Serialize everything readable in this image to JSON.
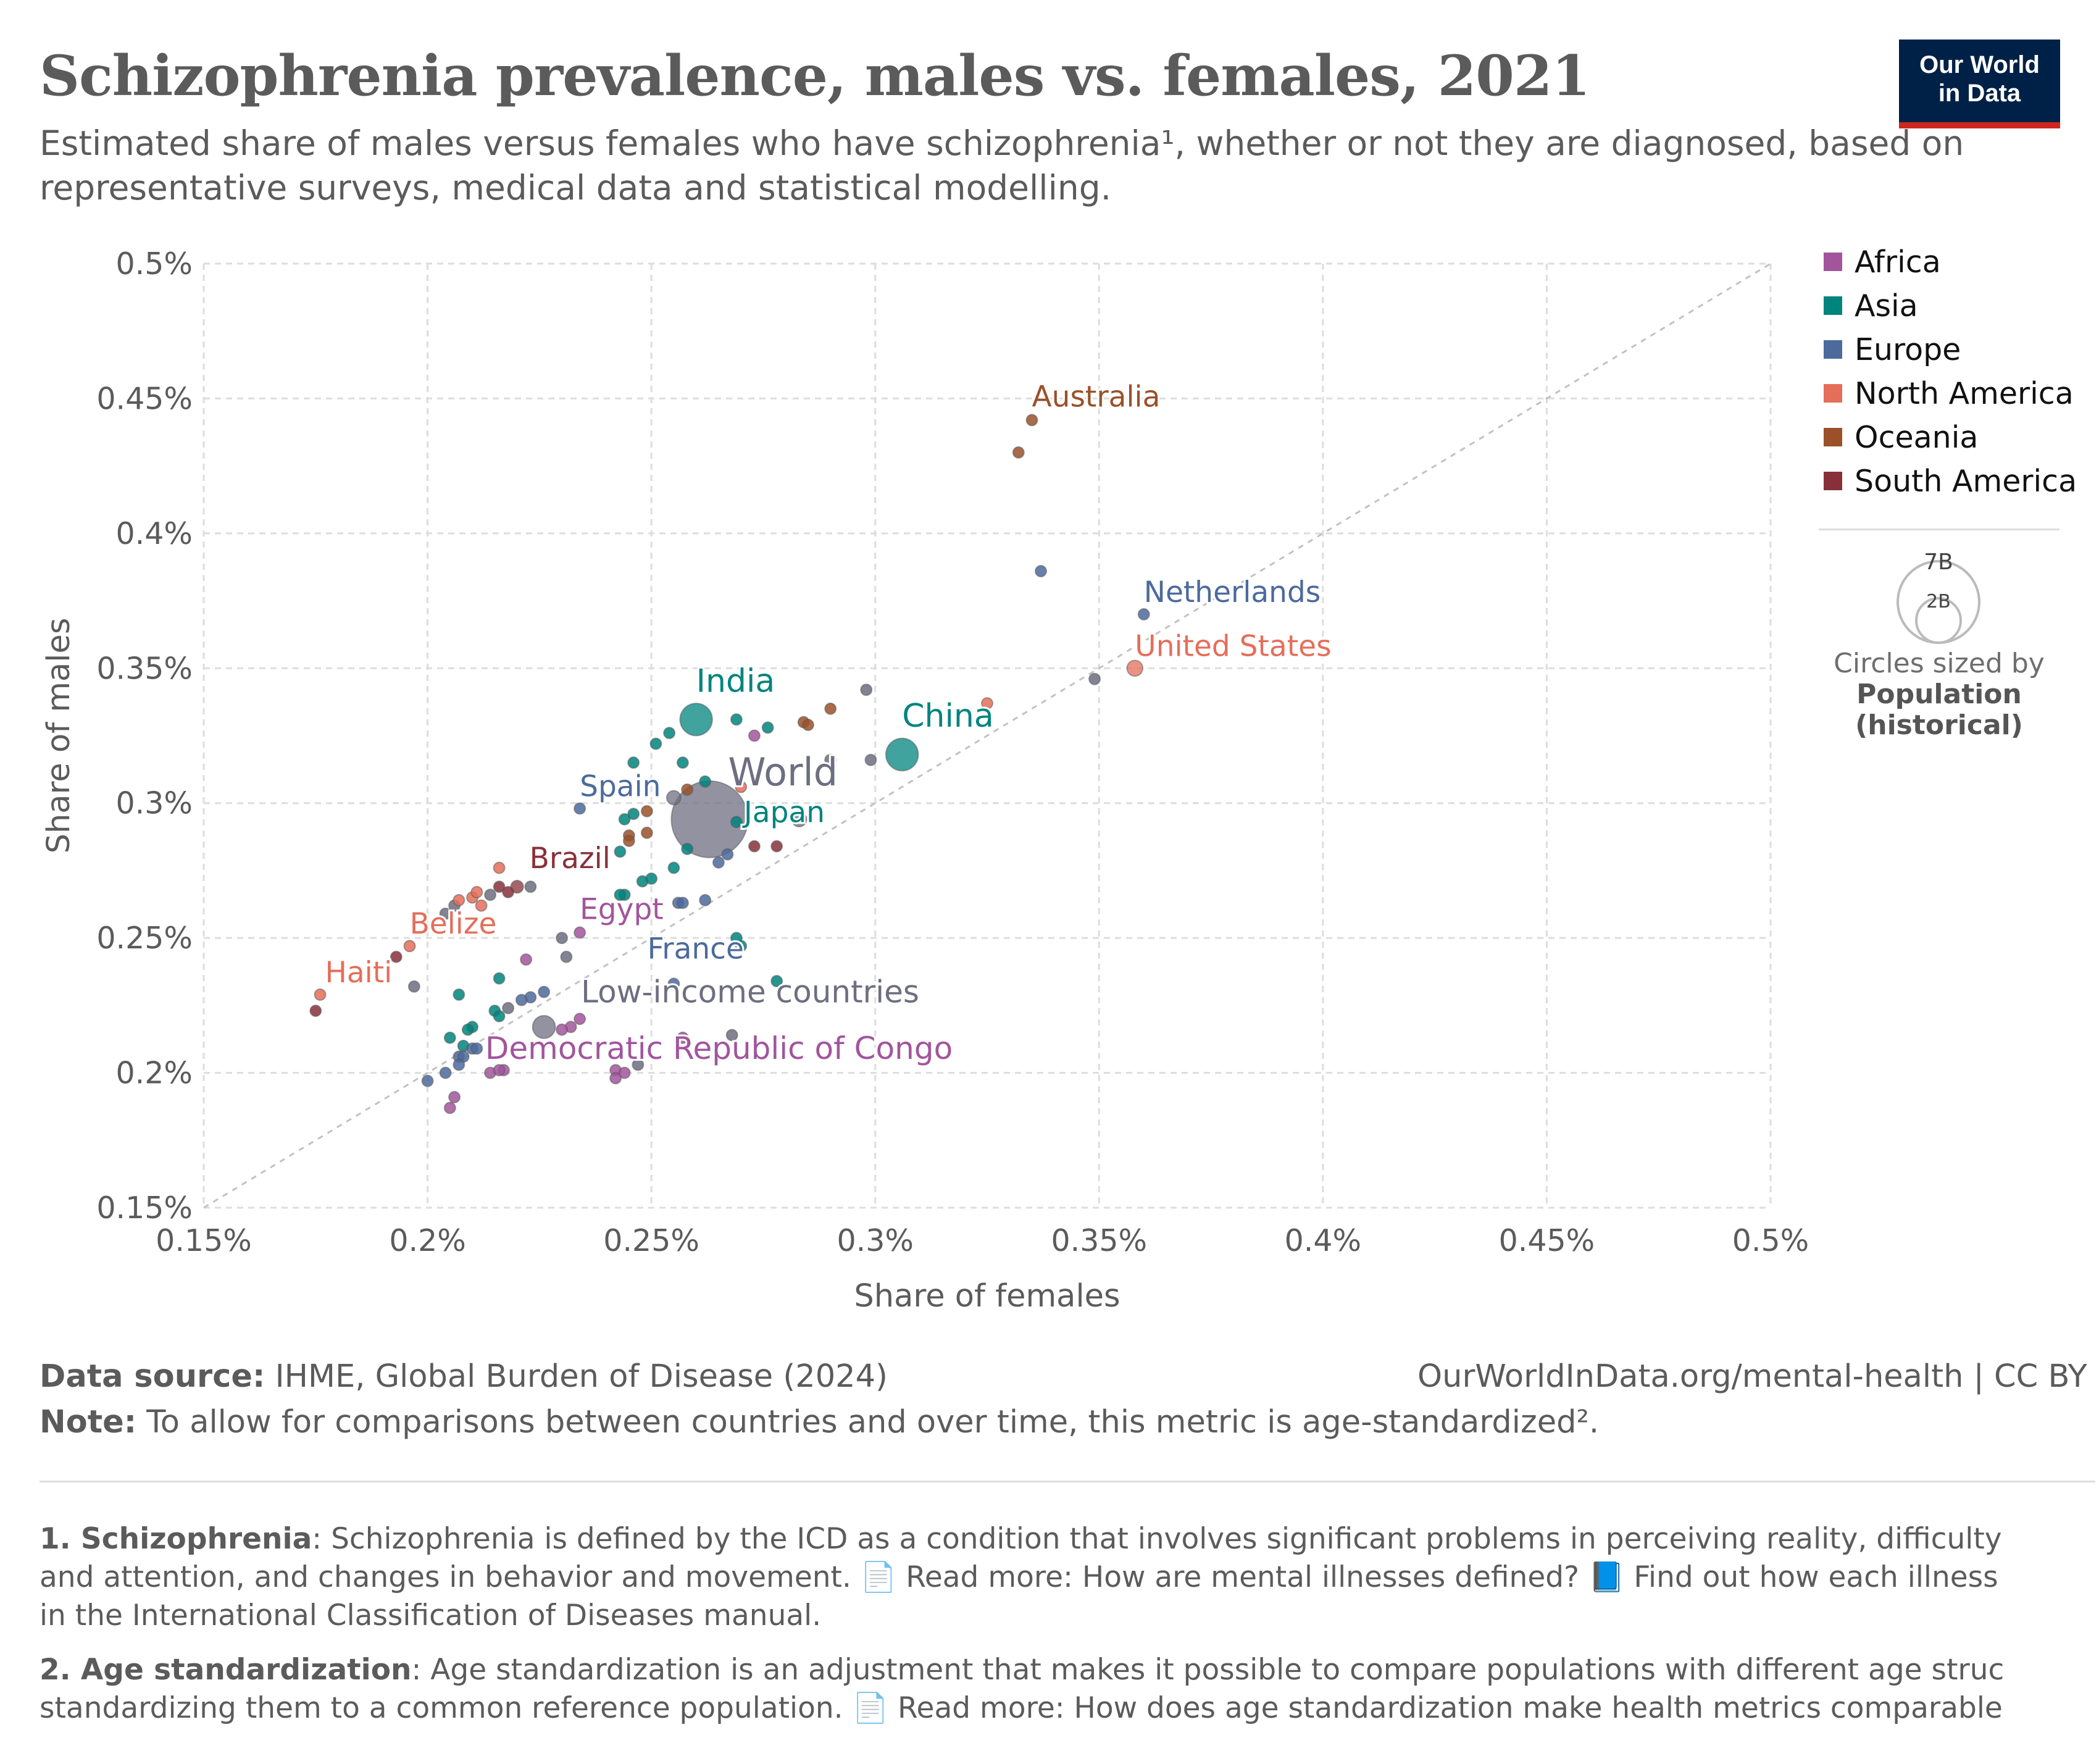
{
  "header": {
    "title": "Schizophrenia prevalence, males vs. females, 2021",
    "subtitle_line1": "Estimated share of males versus females who have schizophrenia¹, whether or not they are diagnosed, based on",
    "subtitle_line2": "representative surveys, medical data and statistical modelling.",
    "logo_line1": "Our World",
    "logo_line2": "in Data"
  },
  "legend": {
    "regions": [
      {
        "label": "Africa",
        "color": "#a2559c"
      },
      {
        "label": "Asia",
        "color": "#00847e"
      },
      {
        "label": "Europe",
        "color": "#4c6a9c"
      },
      {
        "label": "North America",
        "color": "#e56e5a"
      },
      {
        "label": "Oceania",
        "color": "#9a5129"
      },
      {
        "label": "South America",
        "color": "#883039"
      }
    ],
    "size_big": "7B",
    "size_small": "2B",
    "size_caption1": "Circles sized by",
    "size_caption2": "Population",
    "size_caption3": "(historical)"
  },
  "footer": {
    "source_label": "Data source:",
    "source_text": " IHME, Global Burden of Disease (2024)",
    "url": "OurWorldInData.org/mental-health | CC BY",
    "note_label": "Note:",
    "note_text": " To allow for comparisons between countries and over time, this metric is age-standardized².",
    "fn1_label": "1. Schizophrenia",
    "fn1_line1": ": Schizophrenia is defined by the ICD as a condition that involves significant problems in perceiving reality, difficulty",
    "fn1_line2": "and attention, and changes in behavior and movement. 📄 Read more: How are mental illnesses defined? 📘 Find out how each illness",
    "fn1_line3": "in the International Classification of Diseases manual.",
    "fn2_label": "2. Age standardization",
    "fn2_line1": ": Age standardization is an adjustment that makes it possible to compare populations with different age struc",
    "fn2_line2": "standardizing them to a common reference population. 📄 Read more: How does age standardization make health metrics comparable"
  },
  "chart_data": {
    "type": "scatter",
    "title": "Schizophrenia prevalence, males vs. females, 2021",
    "xlabel": "Share of females",
    "ylabel": "Share of males",
    "xlim": [
      0.15,
      0.5
    ],
    "ylim": [
      0.15,
      0.5
    ],
    "x_unit": "%",
    "y_unit": "%",
    "x_ticks": [
      "0.15%",
      "0.2%",
      "0.25%",
      "0.3%",
      "0.35%",
      "0.4%",
      "0.45%",
      "0.5%"
    ],
    "y_ticks": [
      "0.5%",
      "0.45%",
      "0.4%",
      "0.35%",
      "0.3%",
      "0.25%",
      "0.2%",
      "0.15%"
    ],
    "x_tick_values": [
      0.15,
      0.2,
      0.25,
      0.3,
      0.35,
      0.4,
      0.45,
      0.5
    ],
    "y_tick_values": [
      0.5,
      0.45,
      0.4,
      0.35,
      0.3,
      0.25,
      0.2,
      0.15
    ],
    "grid": true,
    "diagonal_reference": true,
    "legend_placement": "right",
    "region_colors": {
      "Africa": "#a2559c",
      "Asia": "#00847e",
      "Europe": "#4c6a9c",
      "North America": "#e56e5a",
      "Oceania": "#9a5129",
      "South America": "#883039",
      "Other": "#6d6e80"
    },
    "points": [
      {
        "name": "World",
        "x": 0.263,
        "y": 0.294,
        "pop": 7.9,
        "region": "Other",
        "label": true
      },
      {
        "name": "India",
        "x": 0.26,
        "y": 0.331,
        "pop": 1.41,
        "region": "Asia",
        "label": true
      },
      {
        "name": "China",
        "x": 0.306,
        "y": 0.318,
        "pop": 1.42,
        "region": "Asia",
        "label": true
      },
      {
        "name": "Japan",
        "x": 0.269,
        "y": 0.293,
        "pop": 0.125,
        "region": "Asia",
        "label": true
      },
      {
        "name": "Spain",
        "x": 0.234,
        "y": 0.298,
        "pop": 0.047,
        "region": "Europe",
        "label": true
      },
      {
        "name": "France",
        "x": 0.256,
        "y": 0.263,
        "pop": 0.065,
        "region": "Europe",
        "label": true
      },
      {
        "name": "Brazil",
        "x": 0.22,
        "y": 0.269,
        "pop": 0.214,
        "region": "South America",
        "label": true
      },
      {
        "name": "Egypt",
        "x": 0.234,
        "y": 0.252,
        "pop": 0.109,
        "region": "Africa",
        "label": true
      },
      {
        "name": "Belize",
        "x": 0.196,
        "y": 0.247,
        "pop": 0.0004,
        "region": "North America",
        "label": true
      },
      {
        "name": "Haiti",
        "x": 0.176,
        "y": 0.229,
        "pop": 0.011,
        "region": "North America",
        "label": true
      },
      {
        "name": "Australia",
        "x": 0.335,
        "y": 0.442,
        "pop": 0.026,
        "region": "Oceania",
        "label": true
      },
      {
        "name": "Netherlands",
        "x": 0.36,
        "y": 0.37,
        "pop": 0.018,
        "region": "Europe",
        "label": true
      },
      {
        "name": "United States",
        "x": 0.358,
        "y": 0.35,
        "pop": 0.337,
        "region": "North America",
        "label": true
      },
      {
        "name": "Low-income countries",
        "x": 0.226,
        "y": 0.217,
        "pop": 0.7,
        "region": "Other",
        "label": true
      },
      {
        "name": "Democratic Republic of Congo",
        "x": 0.217,
        "y": 0.201,
        "pop": 0.095,
        "region": "Africa",
        "label": true
      },
      {
        "name": "",
        "x": 0.332,
        "y": 0.43,
        "pop": 0.005,
        "region": "Oceania"
      },
      {
        "name": "",
        "x": 0.337,
        "y": 0.386,
        "pop": 0.005,
        "region": "Europe"
      },
      {
        "name": "",
        "x": 0.349,
        "y": 0.346,
        "pop": 0.005,
        "region": "Other"
      },
      {
        "name": "",
        "x": 0.325,
        "y": 0.337,
        "pop": 0.005,
        "region": "North America"
      },
      {
        "name": "",
        "x": 0.298,
        "y": 0.342,
        "pop": 0.005,
        "region": "Other"
      },
      {
        "name": "",
        "x": 0.29,
        "y": 0.335,
        "pop": 0.005,
        "region": "Oceania"
      },
      {
        "name": "",
        "x": 0.284,
        "y": 0.33,
        "pop": 0.005,
        "region": "Oceania"
      },
      {
        "name": "",
        "x": 0.285,
        "y": 0.329,
        "pop": 0.005,
        "region": "Oceania"
      },
      {
        "name": "",
        "x": 0.29,
        "y": 0.316,
        "pop": 0.005,
        "region": "Other"
      },
      {
        "name": "",
        "x": 0.299,
        "y": 0.316,
        "pop": 0.005,
        "region": "Other"
      },
      {
        "name": "",
        "x": 0.273,
        "y": 0.325,
        "pop": 0.005,
        "region": "Africa"
      },
      {
        "name": "",
        "x": 0.269,
        "y": 0.331,
        "pop": 0.005,
        "region": "Asia"
      },
      {
        "name": "",
        "x": 0.254,
        "y": 0.326,
        "pop": 0.02,
        "region": "Asia"
      },
      {
        "name": "",
        "x": 0.251,
        "y": 0.322,
        "pop": 0.01,
        "region": "Asia"
      },
      {
        "name": "",
        "x": 0.246,
        "y": 0.315,
        "pop": 0.005,
        "region": "Asia"
      },
      {
        "name": "",
        "x": 0.257,
        "y": 0.315,
        "pop": 0.02,
        "region": "Asia"
      },
      {
        "name": "",
        "x": 0.276,
        "y": 0.328,
        "pop": 0.005,
        "region": "Asia"
      },
      {
        "name": "",
        "x": 0.262,
        "y": 0.308,
        "pop": 0.005,
        "region": "Asia"
      },
      {
        "name": "",
        "x": 0.255,
        "y": 0.302,
        "pop": 0.27,
        "region": "Other"
      },
      {
        "name": "",
        "x": 0.283,
        "y": 0.294,
        "pop": 0.3,
        "region": "Other"
      },
      {
        "name": "",
        "x": 0.258,
        "y": 0.305,
        "pop": 0.01,
        "region": "Oceania"
      },
      {
        "name": "",
        "x": 0.249,
        "y": 0.297,
        "pop": 0.005,
        "region": "Oceania"
      },
      {
        "name": "",
        "x": 0.244,
        "y": 0.294,
        "pop": 0.005,
        "region": "Asia"
      },
      {
        "name": "",
        "x": 0.246,
        "y": 0.296,
        "pop": 0.005,
        "region": "Asia"
      },
      {
        "name": "",
        "x": 0.245,
        "y": 0.288,
        "pop": 0.005,
        "region": "Oceania"
      },
      {
        "name": "",
        "x": 0.249,
        "y": 0.289,
        "pop": 0.005,
        "region": "Oceania"
      },
      {
        "name": "",
        "x": 0.245,
        "y": 0.286,
        "pop": 0.005,
        "region": "Oceania"
      },
      {
        "name": "",
        "x": 0.243,
        "y": 0.282,
        "pop": 0.005,
        "region": "Asia"
      },
      {
        "name": "",
        "x": 0.258,
        "y": 0.283,
        "pop": 0.005,
        "region": "Asia"
      },
      {
        "name": "",
        "x": 0.255,
        "y": 0.276,
        "pop": 0.005,
        "region": "Asia"
      },
      {
        "name": "",
        "x": 0.248,
        "y": 0.271,
        "pop": 0.005,
        "region": "Asia"
      },
      {
        "name": "",
        "x": 0.25,
        "y": 0.272,
        "pop": 0.005,
        "region": "Asia"
      },
      {
        "name": "",
        "x": 0.244,
        "y": 0.266,
        "pop": 0.005,
        "region": "Asia"
      },
      {
        "name": "",
        "x": 0.243,
        "y": 0.266,
        "pop": 0.005,
        "region": "Asia"
      },
      {
        "name": "",
        "x": 0.265,
        "y": 0.278,
        "pop": 0.01,
        "region": "Europe"
      },
      {
        "name": "",
        "x": 0.267,
        "y": 0.281,
        "pop": 0.005,
        "region": "Europe"
      },
      {
        "name": "",
        "x": 0.273,
        "y": 0.284,
        "pop": 0.005,
        "region": "South America"
      },
      {
        "name": "",
        "x": 0.278,
        "y": 0.284,
        "pop": 0.005,
        "region": "South America"
      },
      {
        "name": "",
        "x": 0.27,
        "y": 0.306,
        "pop": 0.005,
        "region": "North America"
      },
      {
        "name": "",
        "x": 0.262,
        "y": 0.264,
        "pop": 0.005,
        "region": "Europe"
      },
      {
        "name": "",
        "x": 0.257,
        "y": 0.263,
        "pop": 0.005,
        "region": "Europe"
      },
      {
        "name": "",
        "x": 0.269,
        "y": 0.25,
        "pop": 0.005,
        "region": "Asia"
      },
      {
        "name": "",
        "x": 0.27,
        "y": 0.247,
        "pop": 0.005,
        "region": "Asia"
      },
      {
        "name": "",
        "x": 0.278,
        "y": 0.234,
        "pop": 0.005,
        "region": "Asia"
      },
      {
        "name": "",
        "x": 0.255,
        "y": 0.233,
        "pop": 0.005,
        "region": "Europe"
      },
      {
        "name": "",
        "x": 0.268,
        "y": 0.214,
        "pop": 0.005,
        "region": "Other"
      },
      {
        "name": "",
        "x": 0.257,
        "y": 0.213,
        "pop": 0.005,
        "region": "Africa"
      },
      {
        "name": "",
        "x": 0.242,
        "y": 0.201,
        "pop": 0.01,
        "region": "Africa"
      },
      {
        "name": "",
        "x": 0.244,
        "y": 0.2,
        "pop": 0.01,
        "region": "Africa"
      },
      {
        "name": "",
        "x": 0.247,
        "y": 0.203,
        "pop": 0.005,
        "region": "Other"
      },
      {
        "name": "",
        "x": 0.242,
        "y": 0.198,
        "pop": 0.005,
        "region": "Africa"
      },
      {
        "name": "",
        "x": 0.232,
        "y": 0.217,
        "pop": 0.01,
        "region": "Africa"
      },
      {
        "name": "",
        "x": 0.23,
        "y": 0.216,
        "pop": 0.01,
        "region": "Africa"
      },
      {
        "name": "",
        "x": 0.234,
        "y": 0.22,
        "pop": 0.005,
        "region": "Africa"
      },
      {
        "name": "",
        "x": 0.226,
        "y": 0.23,
        "pop": 0.005,
        "region": "Europe"
      },
      {
        "name": "",
        "x": 0.223,
        "y": 0.228,
        "pop": 0.005,
        "region": "Europe"
      },
      {
        "name": "",
        "x": 0.221,
        "y": 0.227,
        "pop": 0.005,
        "region": "Europe"
      },
      {
        "name": "",
        "x": 0.218,
        "y": 0.224,
        "pop": 0.02,
        "region": "Other"
      },
      {
        "name": "",
        "x": 0.215,
        "y": 0.223,
        "pop": 0.005,
        "region": "Asia"
      },
      {
        "name": "",
        "x": 0.216,
        "y": 0.235,
        "pop": 0.005,
        "region": "Asia"
      },
      {
        "name": "",
        "x": 0.216,
        "y": 0.221,
        "pop": 0.005,
        "region": "Asia"
      },
      {
        "name": "",
        "x": 0.207,
        "y": 0.229,
        "pop": 0.005,
        "region": "Asia"
      },
      {
        "name": "",
        "x": 0.21,
        "y": 0.217,
        "pop": 0.005,
        "region": "Asia"
      },
      {
        "name": "",
        "x": 0.209,
        "y": 0.216,
        "pop": 0.005,
        "region": "Asia"
      },
      {
        "name": "",
        "x": 0.205,
        "y": 0.213,
        "pop": 0.005,
        "region": "Asia"
      },
      {
        "name": "",
        "x": 0.208,
        "y": 0.21,
        "pop": 0.005,
        "region": "Asia"
      },
      {
        "name": "",
        "x": 0.21,
        "y": 0.209,
        "pop": 0.005,
        "region": "Europe"
      },
      {
        "name": "",
        "x": 0.211,
        "y": 0.209,
        "pop": 0.005,
        "region": "Europe"
      },
      {
        "name": "",
        "x": 0.207,
        "y": 0.206,
        "pop": 0.005,
        "region": "Europe"
      },
      {
        "name": "",
        "x": 0.208,
        "y": 0.206,
        "pop": 0.005,
        "region": "Europe"
      },
      {
        "name": "",
        "x": 0.207,
        "y": 0.203,
        "pop": 0.005,
        "region": "Europe"
      },
      {
        "name": "",
        "x": 0.204,
        "y": 0.2,
        "pop": 0.005,
        "region": "Europe"
      },
      {
        "name": "",
        "x": 0.2,
        "y": 0.197,
        "pop": 0.005,
        "region": "Europe"
      },
      {
        "name": "",
        "x": 0.214,
        "y": 0.2,
        "pop": 0.01,
        "region": "Africa"
      },
      {
        "name": "",
        "x": 0.216,
        "y": 0.201,
        "pop": 0.005,
        "region": "Africa"
      },
      {
        "name": "",
        "x": 0.206,
        "y": 0.191,
        "pop": 0.005,
        "region": "Africa"
      },
      {
        "name": "",
        "x": 0.205,
        "y": 0.187,
        "pop": 0.005,
        "region": "Africa"
      },
      {
        "name": "",
        "x": 0.197,
        "y": 0.232,
        "pop": 0.005,
        "region": "Other"
      },
      {
        "name": "",
        "x": 0.193,
        "y": 0.243,
        "pop": 0.005,
        "region": "South America"
      },
      {
        "name": "",
        "x": 0.175,
        "y": 0.223,
        "pop": 0.005,
        "region": "South America"
      },
      {
        "name": "",
        "x": 0.204,
        "y": 0.259,
        "pop": 0.005,
        "region": "Other"
      },
      {
        "name": "",
        "x": 0.206,
        "y": 0.262,
        "pop": 0.005,
        "region": "Other"
      },
      {
        "name": "",
        "x": 0.207,
        "y": 0.264,
        "pop": 0.005,
        "region": "North America"
      },
      {
        "name": "",
        "x": 0.21,
        "y": 0.265,
        "pop": 0.005,
        "region": "North America"
      },
      {
        "name": "",
        "x": 0.212,
        "y": 0.262,
        "pop": 0.005,
        "region": "North America"
      },
      {
        "name": "",
        "x": 0.211,
        "y": 0.267,
        "pop": 0.005,
        "region": "North America"
      },
      {
        "name": "",
        "x": 0.214,
        "y": 0.266,
        "pop": 0.005,
        "region": "Other"
      },
      {
        "name": "",
        "x": 0.216,
        "y": 0.276,
        "pop": 0.005,
        "region": "North America"
      },
      {
        "name": "",
        "x": 0.218,
        "y": 0.267,
        "pop": 0.005,
        "region": "South America"
      },
      {
        "name": "",
        "x": 0.216,
        "y": 0.269,
        "pop": 0.005,
        "region": "South America"
      },
      {
        "name": "",
        "x": 0.223,
        "y": 0.269,
        "pop": 0.005,
        "region": "Other"
      },
      {
        "name": "",
        "x": 0.222,
        "y": 0.242,
        "pop": 0.005,
        "region": "Africa"
      },
      {
        "name": "",
        "x": 0.23,
        "y": 0.25,
        "pop": 0.005,
        "region": "Other"
      },
      {
        "name": "",
        "x": 0.231,
        "y": 0.243,
        "pop": 0.005,
        "region": "Other"
      }
    ]
  }
}
